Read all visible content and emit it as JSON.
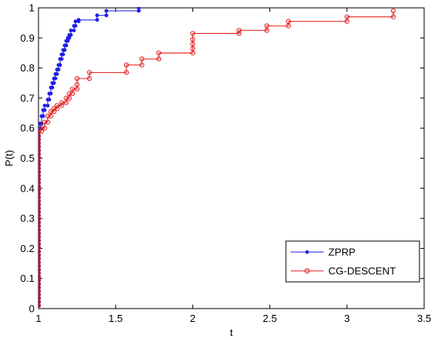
{
  "chart_data": {
    "type": "line",
    "step": true,
    "xlabel": "t",
    "ylabel": "P(t)",
    "xlim": [
      1,
      3.5
    ],
    "ylim": [
      0,
      1
    ],
    "xticks": [
      1,
      1.5,
      2,
      2.5,
      3,
      3.5
    ],
    "yticks": [
      0,
      0.1,
      0.2,
      0.3,
      0.4,
      0.5,
      0.6,
      0.7,
      0.8,
      0.9,
      1
    ],
    "xtick_labels": [
      "1",
      "1.5",
      "2",
      "2.5",
      "3",
      "3.5"
    ],
    "ytick_labels": [
      "0",
      "0.1",
      "0.2",
      "0.3",
      "0.4",
      "0.5",
      "0.6",
      "0.7",
      "0.8",
      "0.9",
      "1"
    ],
    "grid": false,
    "legend_position": "bottom-right",
    "series": [
      {
        "name": "ZPRP",
        "color": "#1f1fe6",
        "marker": "dot",
        "x": [
          1.0,
          1.01,
          1.02,
          1.03,
          1.04,
          1.06,
          1.07,
          1.08,
          1.09,
          1.1,
          1.11,
          1.12,
          1.13,
          1.14,
          1.15,
          1.16,
          1.17,
          1.18,
          1.19,
          1.2,
          1.21,
          1.23,
          1.24,
          1.26,
          1.38,
          1.44,
          1.65
        ],
        "y": [
          0.6,
          0.615,
          0.64,
          0.66,
          0.675,
          0.695,
          0.715,
          0.735,
          0.75,
          0.765,
          0.78,
          0.795,
          0.81,
          0.83,
          0.845,
          0.86,
          0.875,
          0.89,
          0.9,
          0.91,
          0.925,
          0.94,
          0.955,
          0.96,
          0.975,
          0.99,
          1.0
        ]
      },
      {
        "name": "CG-DESCENT",
        "color": "#e11b1b",
        "marker": "circle",
        "x": [
          1.0,
          1.02,
          1.04,
          1.06,
          1.08,
          1.1,
          1.12,
          1.15,
          1.18,
          1.2,
          1.22,
          1.25,
          1.33,
          1.57,
          1.67,
          1.78,
          2.0,
          2.3,
          2.48,
          2.62,
          3.0,
          3.3
        ],
        "y": [
          0.59,
          0.6,
          0.62,
          0.64,
          0.655,
          0.665,
          0.675,
          0.685,
          0.7,
          0.715,
          0.73,
          0.765,
          0.785,
          0.81,
          0.83,
          0.85,
          0.915,
          0.925,
          0.94,
          0.955,
          0.97,
          0.99
        ]
      }
    ]
  }
}
